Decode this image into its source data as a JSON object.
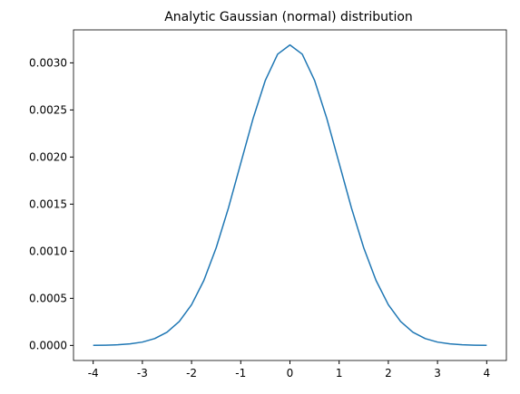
{
  "chart_data": {
    "type": "line",
    "title": "Analytic Gaussian (normal) distribution",
    "x": [
      -4,
      -3.75,
      -3.5,
      -3.25,
      -3,
      -2.75,
      -2.5,
      -2.25,
      -2,
      -1.75,
      -1.5,
      -1.25,
      -1,
      -0.75,
      -0.5,
      -0.25,
      0,
      0.25,
      0.5,
      0.75,
      1,
      1.25,
      1.5,
      1.75,
      2,
      2.25,
      2.5,
      2.75,
      3,
      3.25,
      3.5,
      3.75,
      4
    ],
    "values": [
      1.1e-06,
      2.8e-06,
      7e-06,
      1.62e-05,
      3.54e-05,
      7.28e-05,
      0.00014,
      0.000254,
      0.000432,
      0.00069,
      0.001036,
      0.00146,
      0.001935,
      0.002408,
      0.002815,
      0.003092,
      0.00319,
      0.003092,
      0.002815,
      0.002408,
      0.001935,
      0.00146,
      0.001036,
      0.00069,
      0.000432,
      0.000254,
      0.00014,
      7.28e-05,
      3.54e-05,
      1.62e-05,
      7e-06,
      2.8e-06,
      1.1e-06
    ],
    "color": "#1f77b4",
    "xlim": [
      -4.4,
      4.4
    ],
    "xticks": [
      -4,
      -3,
      -2,
      -1,
      0,
      1,
      2,
      3,
      4
    ],
    "ylim": [
      -0.00016,
      0.00335
    ],
    "yticks": [
      {
        "value": 0,
        "label": "0.0000"
      },
      {
        "value": 0.0005,
        "label": "0.0005"
      },
      {
        "value": 0.001,
        "label": "0.0010"
      },
      {
        "value": 0.0015,
        "label": "0.0015"
      },
      {
        "value": 0.002,
        "label": "0.0020"
      },
      {
        "value": 0.0025,
        "label": "0.0025"
      },
      {
        "value": 0.003,
        "label": "0.0030"
      }
    ],
    "grid": false
  }
}
